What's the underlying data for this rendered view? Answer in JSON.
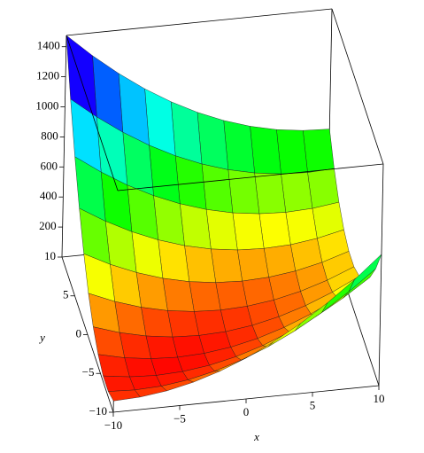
{
  "chart_data": {
    "type": "surface",
    "x": [
      -10,
      -8,
      -6,
      -4,
      -2,
      0,
      2,
      4,
      6,
      8,
      10
    ],
    "y": [
      -10,
      -8,
      -6,
      -4,
      -2,
      0,
      2,
      4,
      6,
      8,
      10
    ],
    "z": [
      [
        75,
        83,
        107,
        147,
        203,
        275,
        363,
        467,
        587,
        723,
        875
      ],
      [
        35,
        27,
        35,
        59,
        99,
        155,
        227,
        315,
        419,
        539,
        675
      ],
      [
        35,
        11,
        3,
        11,
        35,
        75,
        131,
        203,
        291,
        395,
        515
      ],
      [
        75,
        35,
        11,
        3,
        11,
        35,
        75,
        131,
        203,
        291,
        395
      ],
      [
        155,
        99,
        59,
        35,
        27,
        35,
        59,
        99,
        155,
        227,
        315
      ],
      [
        275,
        203,
        147,
        107,
        83,
        75,
        83,
        107,
        147,
        203,
        275
      ],
      [
        435,
        347,
        275,
        219,
        179,
        155,
        147,
        155,
        179,
        219,
        275
      ],
      [
        635,
        531,
        443,
        371,
        315,
        275,
        251,
        243,
        251,
        275,
        315
      ],
      [
        875,
        755,
        651,
        563,
        491,
        435,
        395,
        371,
        363,
        371,
        395
      ],
      [
        1155,
        1019,
        899,
        795,
        707,
        635,
        579,
        539,
        515,
        507,
        515
      ],
      [
        1475,
        1323,
        1187,
        1067,
        963,
        875,
        803,
        747,
        707,
        683,
        675
      ]
    ],
    "xlim": [
      -10,
      10
    ],
    "ylim": [
      -10,
      10
    ],
    "zlim": [
      0,
      1475
    ],
    "xticks": [
      {
        "value": -10,
        "label": "−10"
      },
      {
        "value": -5,
        "label": "−5"
      },
      0,
      5,
      10
    ],
    "yticks": [
      {
        "value": -10,
        "label": "−10"
      },
      {
        "value": -5,
        "label": "−5"
      },
      0,
      5,
      10
    ],
    "zticks": [
      200,
      400,
      600,
      800,
      1000,
      1200,
      1400
    ],
    "xlabel": "x",
    "ylabel": "y",
    "colormap": "rainbow"
  }
}
